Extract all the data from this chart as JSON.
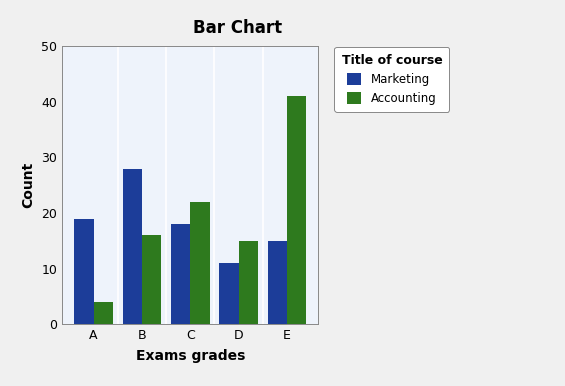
{
  "title": "Bar Chart",
  "xlabel": "Exams grades",
  "ylabel": "Count",
  "legend_title": "Title of course",
  "legend_labels": [
    "Marketing",
    "Accounting"
  ],
  "categories": [
    "A",
    "B",
    "C",
    "D",
    "E"
  ],
  "marketing_values": [
    19,
    28,
    18,
    11,
    15
  ],
  "accounting_values": [
    4,
    16,
    22,
    15,
    41
  ],
  "marketing_color": "#1c3d99",
  "accounting_color": "#2e7a1e",
  "ylim": [
    0,
    50
  ],
  "yticks": [
    0,
    10,
    20,
    30,
    40,
    50
  ],
  "bar_width": 0.4,
  "plot_bg_color": "#eef3fb",
  "fig_bg_color": "#f0f0f0",
  "title_fontsize": 12,
  "axis_label_fontsize": 10,
  "tick_fontsize": 9,
  "legend_fontsize": 8.5,
  "legend_title_fontsize": 9
}
